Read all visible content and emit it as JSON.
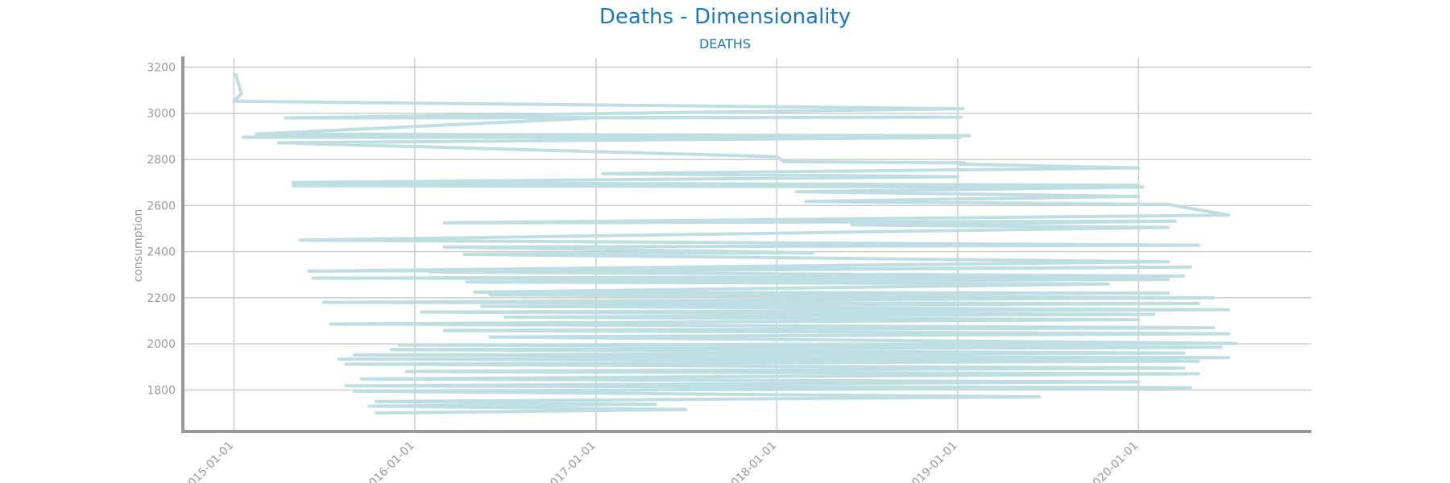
{
  "chart_data": {
    "type": "line",
    "title": "Deaths - Dimensionality",
    "subtitle": "DEATHS",
    "xlabel": "",
    "ylabel": "consumption",
    "x_type": "date",
    "xlim": [
      "2014-09-20",
      "2020-12-15"
    ],
    "ylim": [
      1620,
      3240
    ],
    "x_ticks": [
      "2015-01-01",
      "2016-01-01",
      "2017-01-01",
      "2018-01-01",
      "2019-01-01",
      "2020-01-01"
    ],
    "y_ticks": [
      1800,
      2000,
      2200,
      2400,
      2600,
      2800,
      3000,
      3200
    ],
    "grid": true,
    "legend": "none",
    "colors": {
      "series": "#bfdee1",
      "grid": "#cccccc",
      "axis": "#999999",
      "title": "#1f77b4"
    },
    "series": [
      {
        "values": [
          [
            "2015-01-05",
            3168
          ],
          [
            "2015-01-16",
            3085
          ],
          [
            "2015-01-01",
            3052
          ],
          [
            "2019-01-12",
            3020
          ],
          [
            "2015-04-15",
            2980
          ],
          [
            "2019-01-08",
            2983
          ],
          [
            "2017-01-01",
            2980
          ],
          [
            "2015-02-15",
            2910
          ],
          [
            "2019-01-25",
            2903
          ],
          [
            "2015-01-20",
            2896
          ],
          [
            "2019-01-05",
            2895
          ],
          [
            "2015-04-01",
            2872
          ],
          [
            "2018-01-01",
            2812
          ],
          [
            "2018-01-15",
            2790
          ],
          [
            "2019-01-15",
            2785
          ],
          [
            "2019-01-01",
            2780
          ],
          [
            "2020-01-01",
            2763
          ],
          [
            "2017-01-15",
            2738
          ],
          [
            "2019-01-01",
            2725
          ],
          [
            "2015-05-01",
            2700
          ],
          [
            "2020-01-01",
            2688
          ],
          [
            "2015-05-01",
            2686
          ],
          [
            "2020-01-10",
            2680
          ],
          [
            "2018-02-10",
            2660
          ],
          [
            "2020-01-01",
            2640
          ],
          [
            "2018-03-01",
            2618
          ],
          [
            "2020-03-01",
            2605
          ],
          [
            "2020-07-01",
            2558
          ],
          [
            "2016-03-01",
            2525
          ],
          [
            "2020-03-15",
            2532
          ],
          [
            "2018-06-01",
            2516
          ],
          [
            "2020-03-01",
            2505
          ],
          [
            "2018-01-01",
            2480
          ],
          [
            "2015-05-15",
            2450
          ],
          [
            "2020-05-01",
            2428
          ],
          [
            "2016-03-01",
            2420
          ],
          [
            "2018-03-15",
            2395
          ],
          [
            "2016-04-10",
            2388
          ],
          [
            "2020-03-01",
            2356
          ],
          [
            "2015-06-01",
            2315
          ],
          [
            "2020-04-15",
            2333
          ],
          [
            "2016-02-01",
            2312
          ],
          [
            "2020-04-01",
            2294
          ],
          [
            "2015-06-10",
            2285
          ],
          [
            "2020-03-01",
            2280
          ],
          [
            "2016-04-15",
            2268
          ],
          [
            "2019-11-01",
            2260
          ],
          [
            "2016-05-01",
            2224
          ],
          [
            "2020-03-01",
            2220
          ],
          [
            "2016-06-01",
            2212
          ],
          [
            "2020-06-01",
            2200
          ],
          [
            "2015-07-01",
            2180
          ],
          [
            "2020-05-01",
            2175
          ],
          [
            "2016-05-15",
            2163
          ],
          [
            "2020-07-01",
            2148
          ],
          [
            "2016-01-15",
            2138
          ],
          [
            "2020-02-01",
            2128
          ],
          [
            "2016-07-01",
            2116
          ],
          [
            "2020-01-01",
            2105
          ],
          [
            "2015-07-15",
            2086
          ],
          [
            "2020-06-01",
            2070
          ],
          [
            "2016-03-01",
            2058
          ],
          [
            "2020-07-01",
            2044
          ],
          [
            "2016-06-01",
            2030
          ],
          [
            "2020-07-15",
            2002
          ],
          [
            "2015-12-01",
            1995
          ],
          [
            "2020-06-15",
            1985
          ],
          [
            "2015-11-15",
            1975
          ],
          [
            "2020-04-01",
            1960
          ],
          [
            "2015-09-01",
            1952
          ],
          [
            "2020-07-01",
            1940
          ],
          [
            "2015-08-01",
            1934
          ],
          [
            "2020-05-01",
            1925
          ],
          [
            "2015-08-15",
            1912
          ],
          [
            "2020-04-01",
            1895
          ],
          [
            "2015-12-15",
            1880
          ],
          [
            "2020-05-01",
            1870
          ],
          [
            "2015-09-15",
            1848
          ],
          [
            "2020-01-01",
            1835
          ],
          [
            "2015-08-15",
            1818
          ],
          [
            "2020-04-15",
            1810
          ],
          [
            "2015-09-01",
            1795
          ],
          [
            "2019-06-15",
            1770
          ],
          [
            "2015-10-15",
            1750
          ],
          [
            "2017-05-01",
            1738
          ],
          [
            "2015-10-01",
            1730
          ],
          [
            "2017-07-01",
            1715
          ],
          [
            "2015-10-15",
            1700
          ]
        ]
      }
    ]
  }
}
